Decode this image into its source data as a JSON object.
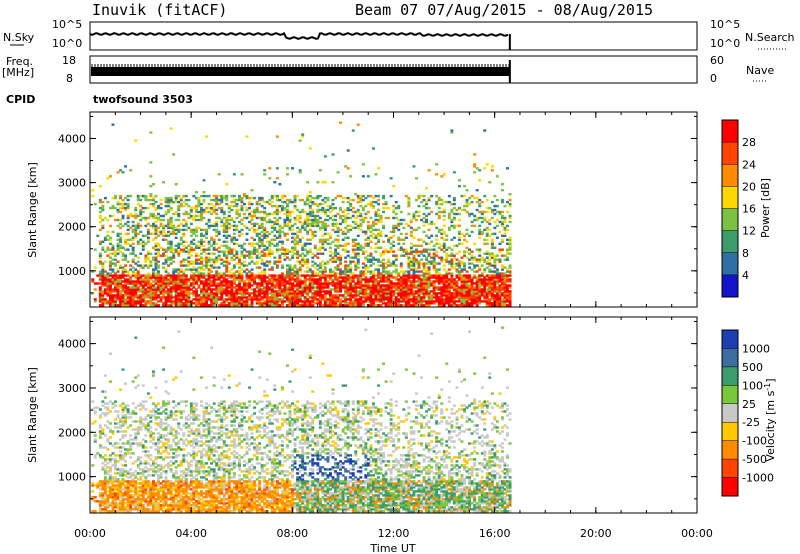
{
  "header": {
    "radar": "Inuvik (fitACF)",
    "beam_date": "Beam 07 07/Aug/2015 - 08/Aug/2015"
  },
  "status": {
    "nsky_label": "N.Sky",
    "nsky_top": "10^5",
    "nsky_bottom": "10^0",
    "nsearch_label": "N.Search",
    "nsearch_top": "10^5",
    "nsearch_bottom": "10^0",
    "freq_label_1": "Freq.",
    "freq_label_2": "[MHz]",
    "freq_top": "18",
    "freq_bottom": "8",
    "nave_label": "Nave",
    "nave_top": "60",
    "nave_bottom": "0",
    "cpid_label": "CPID",
    "cpid_value": "twofsound 3503"
  },
  "chart_data": [
    {
      "type": "heatmap",
      "parameter": "Power",
      "ylabel": "Slant Range [km]",
      "colorbar_label": "Power [dB]",
      "colorbar_ticks": [
        "28",
        "24",
        "20",
        "16",
        "12",
        "8",
        "4"
      ],
      "colors": [
        "#ff0000",
        "#ff4500",
        "#ff8c00",
        "#ffd700",
        "#7cc242",
        "#3c9c6c",
        "#2e6fa8",
        "#1414c8"
      ],
      "y_ticks": [
        "4000",
        "3000",
        "2000",
        "1000"
      ],
      "ylim": [
        180,
        4600
      ],
      "xlim_hours": [
        0,
        24
      ],
      "x_ticks": [
        "00:00",
        "04:00",
        "08:00",
        "12:00",
        "16:00",
        "20:00",
        "00:00"
      ]
    },
    {
      "type": "heatmap",
      "parameter": "Velocity",
      "ylabel": "Slant Range [km]",
      "colorbar_label": "Velocity [m s^-1]",
      "colorbar_ticks": [
        "1000",
        "500",
        "100",
        "25",
        "-25",
        "-100",
        "-500",
        "-1000"
      ],
      "colors": [
        "#1e3fb4",
        "#3c6ea0",
        "#3c9c6c",
        "#78c83c",
        "#c8c8c8",
        "#ffc800",
        "#ff8c00",
        "#ff4500",
        "#ff0000"
      ],
      "y_ticks": [
        "4000",
        "3000",
        "2000",
        "1000"
      ],
      "ylim": [
        180,
        4600
      ],
      "xlim_hours": [
        0,
        24
      ],
      "x_ticks": [
        "00:00",
        "04:00",
        "08:00",
        "12:00",
        "16:00",
        "20:00",
        "00:00"
      ],
      "xlabel": "Time UT"
    }
  ]
}
